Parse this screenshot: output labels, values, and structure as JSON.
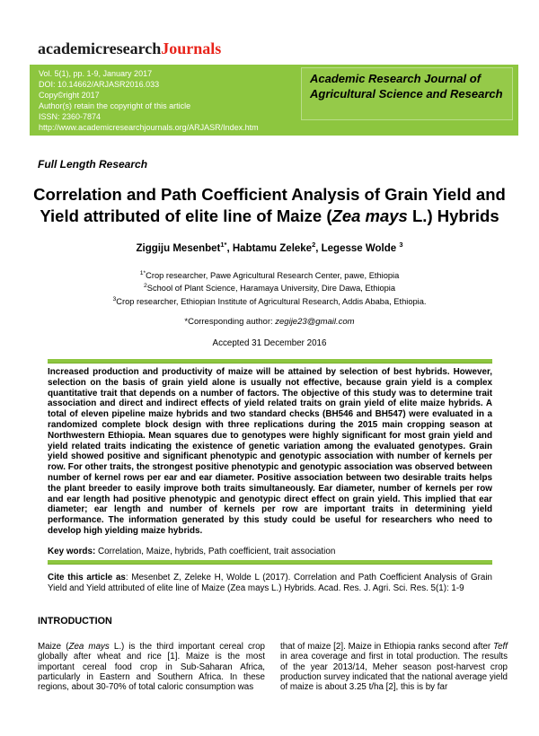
{
  "colors": {
    "brand_green": "#8dc63f",
    "logo_red": "#e8231a"
  },
  "logo": {
    "black_part": "academicresearch",
    "red_part": "Journals"
  },
  "header": {
    "info_lines": [
      "Vol. 5(1), pp. 1-9, January 2017",
      "DOI: 10.14662/ARJASR2016.033",
      "Copy©right 2017",
      "Author(s) retain the copyright of this article",
      "ISSN: 2360-7874"
    ],
    "url": "http://www.academicresearchjournals.org/ARJASR/Index.htm",
    "journal_name": "Academic Research Journal of Agricultural Science and Research"
  },
  "article": {
    "section_label": "Full Length Research",
    "title": {
      "pre": "Correlation and Path Coefficient Analysis of Grain Yield and Yield attributed of elite line of Maize (",
      "italic": "Zea mays",
      "post": " L.) Hybrids"
    },
    "authors": [
      {
        "name": "Ziggiju Mesenbet",
        "sup": "1*",
        "sep": ", "
      },
      {
        "name": "Habtamu Zeleke",
        "sup": "2",
        "sep": ", "
      },
      {
        "name": "Legesse Wolde ",
        "sup": "3",
        "sep": ""
      }
    ],
    "affiliations": [
      {
        "sup": "1*",
        "text": "Crop researcher, Pawe Agricultural Research Center, pawe, Ethiopia"
      },
      {
        "sup": "2",
        "text": "School of Plant Science, Haramaya University, Dire Dawa, Ethiopia"
      },
      {
        "sup": "3",
        "text": "Crop researcher, Ethiopian Institute of Agricultural Research, Addis Ababa, Ethiopia."
      }
    ],
    "corresponding": {
      "prefix": "*Corresponding author: ",
      "email": "zegije23@gmail.com"
    },
    "accepted": "Accepted 31 December 2016",
    "abstract": "Increased production and productivity of maize will be attained by selection of best hybrids. However, selection on the basis of grain yield alone is usually not effective, because grain yield is a complex quantitative trait that depends on a number of factors. The objective of this study was to determine trait association and direct and indirect effects of yield related traits on grain yield of elite maize hybrids. A total of eleven pipeline maize hybrids and two standard checks (BH546 and BH547) were evaluated in a randomized complete block design with three replications during the 2015 main cropping season at Northwestern Ethiopia. Mean squares due to genotypes were highly significant for most grain yield and yield related traits indicating the existence of genetic variation among the evaluated genotypes. Grain yield showed positive and significant phenotypic and genotypic association with number of kernels per row. For other traits, the strongest positive phenotypic and genotypic association was observed between number of kernel rows per ear and ear diameter. Positive association between two desirable traits helps the plant breeder to easily improve both traits simultaneously. Ear diameter, number of kernels per row and ear length had positive phenotypic and genotypic direct effect on grain yield. This implied that ear diameter; ear length and number of kernels per row are important traits in determining yield performance. The information generated by this study could be useful for researchers who need to develop high yielding maize hybrids.",
    "keywords": {
      "label": "Key words:",
      "value": " Correlation, Maize, hybrids, Path coefficient, trait association"
    },
    "citation": {
      "label": "Cite this article as",
      "text": ": Mesenbet Z, Zeleke H, Wolde L (2017). Correlation and Path Coefficient Analysis of Grain Yield and Yield attributed of elite line of Maize (Zea mays L.) Hybrids. Acad. Res. J. Agri. Sci. Res. 5(1): 1-9"
    }
  },
  "introduction": {
    "heading": "INTRODUCTION",
    "col1": {
      "pre": "Maize (",
      "italic": "Zea mays",
      "post": " L.) is the third important cereal crop globally after wheat and rice [1]. Maize is the most important cereal food crop in Sub-Saharan Africa, particularly in Eastern and Southern Africa. In these regions, about 30-70% of total caloric consumption was"
    },
    "col2": {
      "pre": "that of maize [2].  Maize in Ethiopia ranks second after ",
      "italic": "Teff",
      "post": " in area coverage and first in total production. The results of the year 2013/14, Meher season post-harvest crop production survey indicated that the national average yield of maize is about 3.25 t/ha [2], this is by far"
    }
  }
}
